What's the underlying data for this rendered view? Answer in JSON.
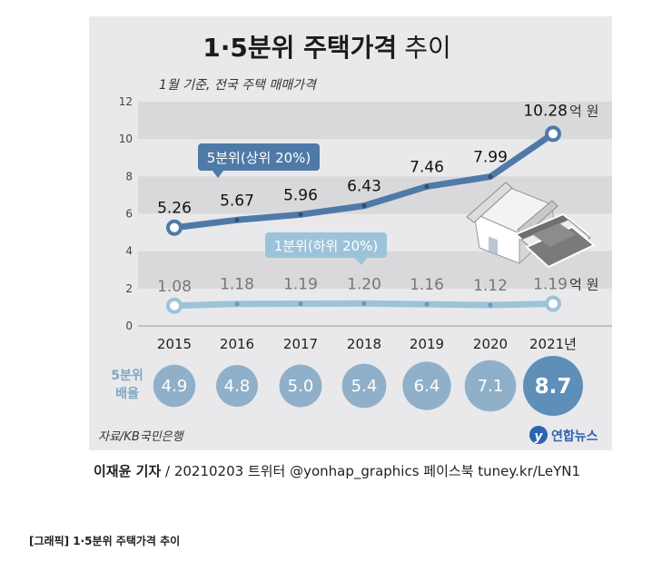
{
  "title_bold": "1·5분위 주택가격",
  "title_rest": "추이",
  "subtitle": "1월 기준, 전국 주택 매매가격",
  "source": "자료/KB국민은행",
  "logo_text": "연합뉴스",
  "credit_author": "이재윤 기자",
  "credit_rest": " / 20210203   트위터 @yonhap_graphics  페이스북 tuney.kr/LeYN1",
  "caption": "[그래픽] 1·5분위 주택가격 추이",
  "ratio_label_line1": "5분위",
  "ratio_label_line2": "배율",
  "unit_label": "억 원",
  "chart_data": {
    "type": "line",
    "x": [
      "2015",
      "2016",
      "2017",
      "2018",
      "2019",
      "2020",
      "2021년"
    ],
    "ylim": [
      0,
      12
    ],
    "yticks": [
      "0",
      "2",
      "4",
      "6",
      "8",
      "10",
      "12"
    ],
    "series": [
      {
        "name": "5분위(상위 20%)",
        "values": [
          5.26,
          5.67,
          5.96,
          6.43,
          7.46,
          7.99,
          10.28
        ],
        "labels": [
          "5.26",
          "5.67",
          "5.96",
          "6.43",
          "7.46",
          "7.99",
          "10.28"
        ]
      },
      {
        "name": "1분위(하위 20%)",
        "values": [
          1.08,
          1.18,
          1.19,
          1.2,
          1.16,
          1.12,
          1.19
        ],
        "labels": [
          "1.08",
          "1.18",
          "1.19",
          "1.20",
          "1.16",
          "1.12",
          "1.19"
        ]
      }
    ],
    "ratio": [
      "4.9",
      "4.8",
      "5.0",
      "5.4",
      "6.4",
      "7.1",
      "8.7"
    ],
    "colors": {
      "top": "#4f7aa8",
      "bottom": "#9cc3d9",
      "bubble": "#8fb0c8",
      "bubble_last": "#5e8fb8"
    }
  }
}
